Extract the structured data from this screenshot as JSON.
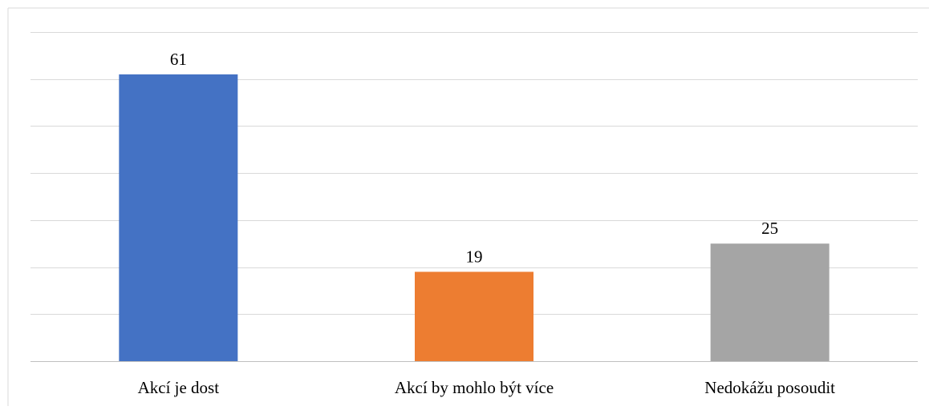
{
  "chart_data": {
    "type": "bar",
    "title": "",
    "xlabel": "",
    "ylabel": "",
    "categories": [
      "Akcí je dost",
      "Akcí by mohlo být více",
      "Nedokážu posoudit"
    ],
    "values": [
      61,
      19,
      25
    ],
    "data_labels": [
      "61",
      "19",
      "25"
    ],
    "colors": [
      "#4472C4",
      "#ED7D31",
      "#A5A5A5"
    ],
    "ylim": [
      0,
      70
    ],
    "gridlines": true,
    "gridline_step": 10,
    "legend": "none"
  }
}
